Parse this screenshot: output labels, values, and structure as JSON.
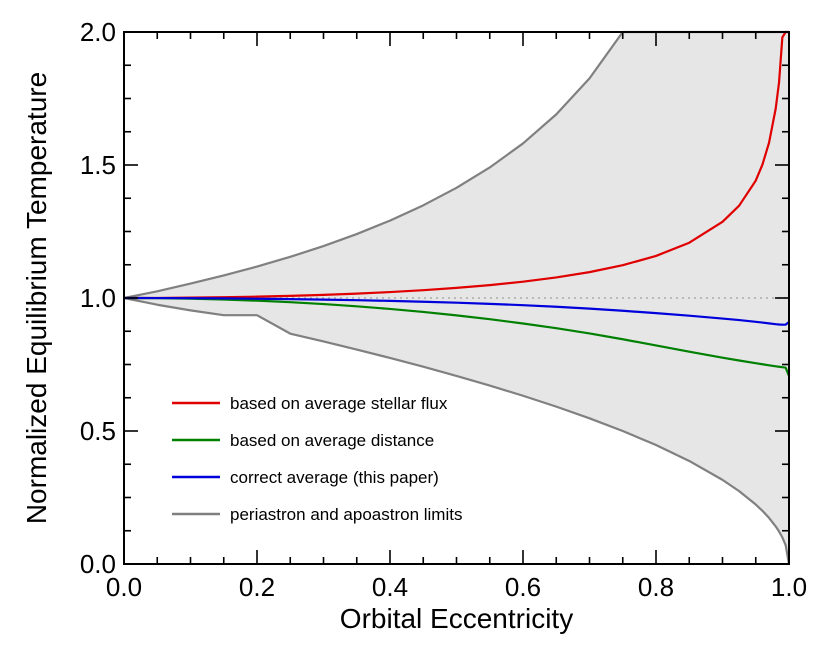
{
  "chart_data": {
    "type": "line",
    "title": "",
    "xlabel": "Orbital Eccentricity",
    "ylabel": "Normalized Equilibrium Temperature",
    "xlim": [
      0.0,
      1.0
    ],
    "ylim": [
      0.0,
      2.0
    ],
    "x_ticks": [
      "0.0",
      "0.2",
      "0.4",
      "0.6",
      "0.8",
      "1.0"
    ],
    "y_ticks": [
      "0.0",
      "0.5",
      "1.0",
      "1.5",
      "2.0"
    ],
    "reference_line": {
      "y": 1.0,
      "style": "dotted",
      "color": "#aaaaaa"
    },
    "shaded_region": {
      "description": "between periastron and apoastron limits",
      "color": "#e6e6e6"
    },
    "x": [
      0,
      0.05,
      0.1,
      0.15,
      0.2,
      0.25,
      0.3,
      0.35,
      0.4,
      0.45,
      0.5,
      0.55,
      0.6,
      0.65,
      0.7,
      0.75,
      0.8,
      0.85,
      0.9,
      0.925,
      0.95,
      0.96,
      0.97,
      0.98,
      0.985,
      0.99,
      0.995,
      1.0
    ],
    "series": [
      {
        "name": "based on average stellar flux",
        "color": "#e00000",
        "values": [
          1.0,
          1.0003,
          1.0013,
          1.0028,
          1.0051,
          1.008,
          1.0118,
          1.0165,
          1.0223,
          1.0294,
          1.038,
          1.0485,
          1.0614,
          1.0772,
          1.0973,
          1.1232,
          1.1581,
          1.2078,
          1.2865,
          1.347,
          1.4414,
          1.501,
          1.584,
          1.712,
          1.81,
          1.98,
          2.0,
          2.0
        ]
      },
      {
        "name": "based on average distance",
        "color": "#008000",
        "values": [
          1.0,
          0.9994,
          0.9975,
          0.9944,
          0.99,
          0.9843,
          0.9772,
          0.9687,
          0.9589,
          0.9476,
          0.9347,
          0.9203,
          0.9042,
          0.8864,
          0.8667,
          0.845,
          0.8216,
          0.7981,
          0.7756,
          0.765,
          0.755,
          0.751,
          0.747,
          0.7433,
          0.7415,
          0.7398,
          0.738,
          0.7071
        ]
      },
      {
        "name": "correct average (this paper)",
        "color": "#0000dd",
        "values": [
          1.0,
          0.9998,
          0.9993,
          0.9985,
          0.9973,
          0.9958,
          0.994,
          0.9918,
          0.9891,
          0.986,
          0.9823,
          0.978,
          0.973,
          0.967,
          0.96,
          0.952,
          0.9431,
          0.9334,
          0.9228,
          0.917,
          0.9105,
          0.9076,
          0.9046,
          0.9016,
          0.9004,
          0.8996,
          0.9,
          0.91
        ]
      },
      {
        "name": "periastron and apoastron limits",
        "color": "#808080",
        "upper": [
          1.0,
          1.0253,
          1.0541,
          1.0849,
          1.118,
          1.1547,
          1.1952,
          1.2403,
          1.291,
          1.3484,
          1.4142,
          1.4907,
          1.5811,
          1.6903,
          1.8257,
          2.0,
          2.0,
          2.0,
          2.0,
          2.0,
          2.0,
          2.0,
          2.0,
          2.0,
          2.0,
          2.0,
          2.0,
          2.0
        ],
        "lower": [
          1.0,
          0.9747,
          0.9535,
          0.9354,
          0.9354,
          0.866,
          0.8367,
          0.8062,
          0.7746,
          0.7416,
          0.7071,
          0.6708,
          0.6325,
          0.5916,
          0.5477,
          0.5,
          0.4472,
          0.3873,
          0.3162,
          0.2739,
          0.2236,
          0.2,
          0.1732,
          0.1414,
          0.1225,
          0.1,
          0.0707,
          0.0
        ]
      }
    ],
    "legend": [
      "based on average stellar flux",
      "based on average distance",
      "correct average (this paper)",
      "periastron and apoastron limits"
    ],
    "legend_position": "bottom-left"
  }
}
